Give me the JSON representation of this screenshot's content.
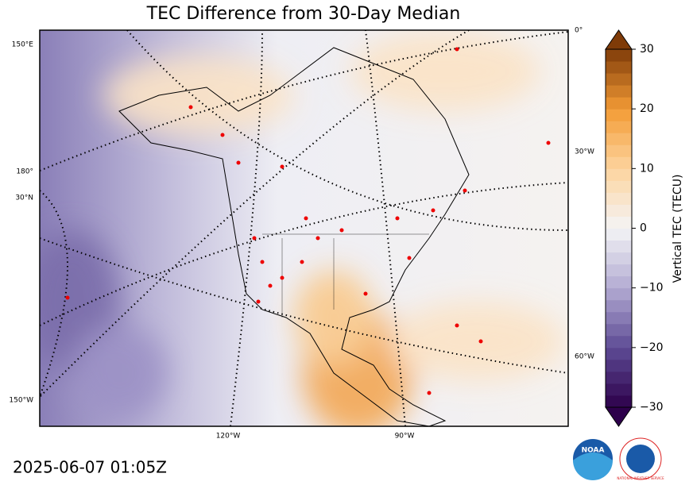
{
  "title": "TEC Difference from 30-Day Median",
  "timestamp": "2025-06-07 01:05Z",
  "graticule_labels": {
    "left": [
      "150°E",
      "180°",
      "30°N",
      "150°W"
    ],
    "right": [
      "0°",
      "30°W",
      "60°W"
    ],
    "bottom": [
      "120°W",
      "90°W"
    ]
  },
  "colorbar": {
    "label": "Vertical TEC (TECU)",
    "lim": [
      -30,
      30
    ],
    "step": 2,
    "colormap": [
      "#2d004b",
      "#5e4b95",
      "#b2abd2",
      "#f4f4f6",
      "#fdd49e",
      "#f39b35",
      "#7f3b08"
    ],
    "ticks": [
      {
        "value": -30,
        "label": "−30"
      },
      {
        "value": -20,
        "label": "−20"
      },
      {
        "value": -10,
        "label": "−10"
      },
      0,
      10,
      20,
      30
    ]
  },
  "logos": {
    "noaa": "NOAA",
    "nws": "NATIONAL WEATHER SERVICE"
  }
}
